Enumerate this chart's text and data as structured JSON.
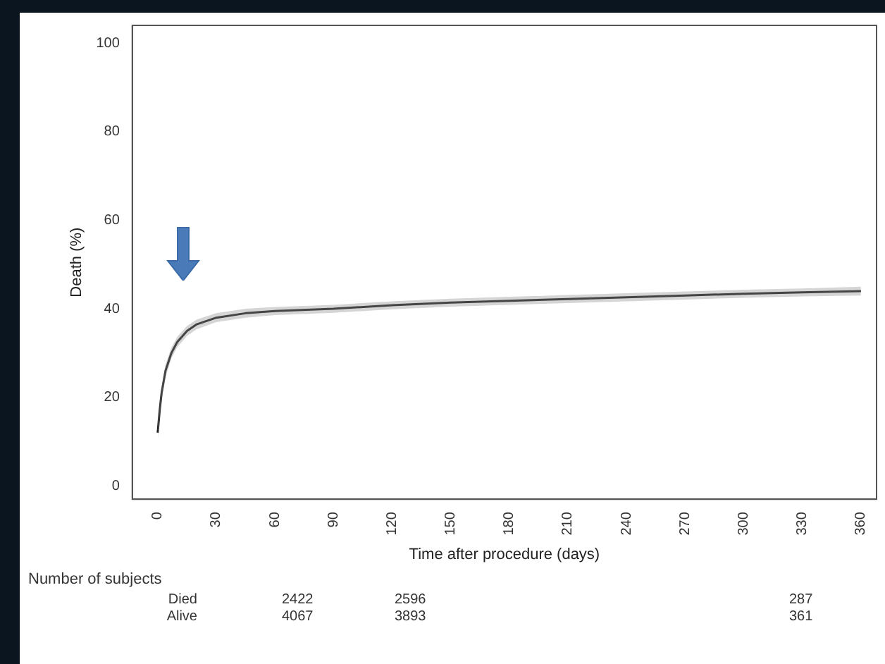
{
  "chart_data": {
    "type": "line",
    "xlabel": "Time after procedure (days)",
    "ylabel": "Death (%)",
    "x": [
      0,
      1,
      2,
      4,
      7,
      10,
      15,
      20,
      30,
      45,
      60,
      90,
      120,
      150,
      180,
      210,
      240,
      270,
      300,
      330,
      360
    ],
    "series": [
      {
        "color": "#222222",
        "values": [
          12,
          17,
          21,
          26,
          30,
          32.5,
          35,
          36.5,
          38,
          39,
          39.5,
          40,
          40.8,
          41.4,
          41.8,
          42.2,
          42.6,
          43,
          43.4,
          43.7,
          44
        ],
        "lower": [
          10.5,
          15.5,
          19.5,
          24.5,
          28.8,
          31.3,
          33.9,
          35.4,
          37,
          38,
          38.6,
          39.1,
          39.9,
          40.5,
          40.9,
          41.3,
          41.7,
          42.1,
          42.5,
          42.8,
          43
        ],
        "upper": [
          13.5,
          18.5,
          22.5,
          27.5,
          31.2,
          33.7,
          36.1,
          37.6,
          39,
          40,
          40.4,
          40.9,
          41.7,
          42.3,
          42.7,
          43.1,
          43.5,
          43.9,
          44.3,
          44.6,
          45
        ]
      }
    ],
    "xlim": [
      -13,
      368
    ],
    "ylim": [
      -3,
      104
    ],
    "xticks": [
      0,
      30,
      60,
      90,
      120,
      150,
      180,
      210,
      240,
      270,
      300,
      330,
      360
    ],
    "yticks": [
      0,
      20,
      40,
      60,
      80,
      100
    ],
    "grid": false,
    "legend": false,
    "line_style": "solid",
    "marker": "none",
    "annotations": [
      "Number of subjects",
      "Died",
      "2422",
      "2596",
      "287",
      "Alive",
      "4067",
      "3893",
      "361"
    ]
  }
}
